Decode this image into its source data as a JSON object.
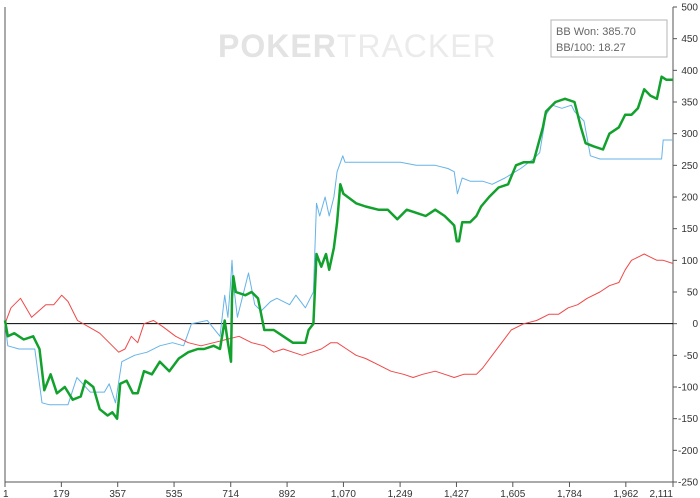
{
  "watermark": {
    "part1": "POKER",
    "part2": "TRACKER"
  },
  "stats": {
    "bb_won": "BB Won: 385.70",
    "bb_per_100": "BB/100: 18.27"
  },
  "chart_data": {
    "type": "line",
    "xlabel": "",
    "ylabel": "",
    "xlim": [
      1,
      2111
    ],
    "ylim": [
      -250,
      500
    ],
    "x_ticks": [
      1,
      179,
      357,
      535,
      714,
      892,
      1070,
      1249,
      1427,
      1605,
      1784,
      1962,
      2111
    ],
    "x_tick_labels": [
      "1",
      "179",
      "357",
      "535",
      "714",
      "892",
      "1,070",
      "1,249",
      "1,427",
      "1,605",
      "1,784",
      "1,962",
      "2,111"
    ],
    "y_ticks": [
      -250,
      -200,
      -150,
      -100,
      -50,
      0,
      50,
      100,
      150,
      200,
      250,
      300,
      350,
      400,
      450,
      500
    ],
    "grid": false,
    "zero_line": true,
    "series": [
      {
        "color": "#66b3e8",
        "width": 1,
        "points": [
          [
            1,
            0
          ],
          [
            10,
            -35
          ],
          [
            45,
            -40
          ],
          [
            95,
            -40
          ],
          [
            118,
            -125
          ],
          [
            140,
            -128
          ],
          [
            200,
            -128
          ],
          [
            228,
            -85
          ],
          [
            270,
            -108
          ],
          [
            315,
            -108
          ],
          [
            330,
            -95
          ],
          [
            350,
            -125
          ],
          [
            370,
            -60
          ],
          [
            410,
            -50
          ],
          [
            450,
            -45
          ],
          [
            490,
            -35
          ],
          [
            530,
            -30
          ],
          [
            565,
            -35
          ],
          [
            590,
            0
          ],
          [
            640,
            5
          ],
          [
            680,
            -20
          ],
          [
            695,
            45
          ],
          [
            705,
            10
          ],
          [
            713,
            60
          ],
          [
            718,
            100
          ],
          [
            722,
            65
          ],
          [
            735,
            10
          ],
          [
            770,
            80
          ],
          [
            790,
            30
          ],
          [
            810,
            20
          ],
          [
            840,
            35
          ],
          [
            860,
            40
          ],
          [
            900,
            30
          ],
          [
            920,
            45
          ],
          [
            950,
            25
          ],
          [
            975,
            50
          ],
          [
            985,
            190
          ],
          [
            995,
            170
          ],
          [
            1012,
            200
          ],
          [
            1025,
            170
          ],
          [
            1040,
            200
          ],
          [
            1050,
            240
          ],
          [
            1068,
            265
          ],
          [
            1075,
            255
          ],
          [
            1120,
            255
          ],
          [
            1180,
            255
          ],
          [
            1250,
            255
          ],
          [
            1300,
            250
          ],
          [
            1360,
            250
          ],
          [
            1400,
            245
          ],
          [
            1420,
            240
          ],
          [
            1430,
            205
          ],
          [
            1445,
            230
          ],
          [
            1470,
            225
          ],
          [
            1510,
            225
          ],
          [
            1540,
            220
          ],
          [
            1580,
            230
          ],
          [
            1630,
            245
          ],
          [
            1670,
            260
          ],
          [
            1690,
            270
          ],
          [
            1710,
            330
          ],
          [
            1730,
            345
          ],
          [
            1760,
            340
          ],
          [
            1790,
            345
          ],
          [
            1800,
            335
          ],
          [
            1830,
            320
          ],
          [
            1850,
            265
          ],
          [
            1880,
            260
          ],
          [
            1950,
            260
          ],
          [
            2020,
            260
          ],
          [
            2075,
            260
          ],
          [
            2080,
            290
          ],
          [
            2111,
            290
          ]
        ]
      },
      {
        "color": "#f04848",
        "width": 1,
        "points": [
          [
            1,
            0
          ],
          [
            20,
            25
          ],
          [
            50,
            40
          ],
          [
            85,
            10
          ],
          [
            130,
            30
          ],
          [
            155,
            30
          ],
          [
            180,
            45
          ],
          [
            200,
            35
          ],
          [
            230,
            5
          ],
          [
            265,
            -5
          ],
          [
            300,
            -15
          ],
          [
            330,
            -30
          ],
          [
            360,
            -45
          ],
          [
            380,
            -40
          ],
          [
            400,
            -20
          ],
          [
            420,
            -30
          ],
          [
            440,
            0
          ],
          [
            470,
            5
          ],
          [
            500,
            -5
          ],
          [
            540,
            -20
          ],
          [
            580,
            -30
          ],
          [
            620,
            -35
          ],
          [
            660,
            -30
          ],
          [
            700,
            -25
          ],
          [
            740,
            -20
          ],
          [
            780,
            -30
          ],
          [
            820,
            -35
          ],
          [
            850,
            -45
          ],
          [
            880,
            -40
          ],
          [
            910,
            -45
          ],
          [
            940,
            -50
          ],
          [
            970,
            -45
          ],
          [
            1000,
            -40
          ],
          [
            1030,
            -30
          ],
          [
            1050,
            -30
          ],
          [
            1080,
            -40
          ],
          [
            1110,
            -50
          ],
          [
            1140,
            -55
          ],
          [
            1180,
            -65
          ],
          [
            1220,
            -75
          ],
          [
            1260,
            -80
          ],
          [
            1290,
            -85
          ],
          [
            1320,
            -80
          ],
          [
            1360,
            -75
          ],
          [
            1390,
            -80
          ],
          [
            1420,
            -85
          ],
          [
            1450,
            -80
          ],
          [
            1490,
            -80
          ],
          [
            1510,
            -70
          ],
          [
            1540,
            -50
          ],
          [
            1570,
            -30
          ],
          [
            1600,
            -10
          ],
          [
            1640,
            0
          ],
          [
            1680,
            5
          ],
          [
            1720,
            15
          ],
          [
            1750,
            15
          ],
          [
            1780,
            25
          ],
          [
            1810,
            30
          ],
          [
            1840,
            40
          ],
          [
            1880,
            50
          ],
          [
            1910,
            60
          ],
          [
            1940,
            65
          ],
          [
            1960,
            85
          ],
          [
            1980,
            100
          ],
          [
            2000,
            105
          ],
          [
            2020,
            110
          ],
          [
            2040,
            105
          ],
          [
            2060,
            100
          ],
          [
            2080,
            100
          ],
          [
            2111,
            95
          ]
        ]
      },
      {
        "color": "#12a12d",
        "width": 2.5,
        "points": [
          [
            1,
            5
          ],
          [
            10,
            -20
          ],
          [
            30,
            -15
          ],
          [
            60,
            -25
          ],
          [
            90,
            -20
          ],
          [
            110,
            -40
          ],
          [
            125,
            -105
          ],
          [
            145,
            -80
          ],
          [
            165,
            -110
          ],
          [
            190,
            -100
          ],
          [
            215,
            -120
          ],
          [
            240,
            -115
          ],
          [
            255,
            -90
          ],
          [
            280,
            -100
          ],
          [
            300,
            -135
          ],
          [
            325,
            -145
          ],
          [
            340,
            -140
          ],
          [
            355,
            -150
          ],
          [
            365,
            -95
          ],
          [
            385,
            -90
          ],
          [
            405,
            -110
          ],
          [
            420,
            -110
          ],
          [
            440,
            -75
          ],
          [
            465,
            -80
          ],
          [
            490,
            -60
          ],
          [
            520,
            -75
          ],
          [
            550,
            -55
          ],
          [
            580,
            -45
          ],
          [
            610,
            -40
          ],
          [
            630,
            -40
          ],
          [
            660,
            -35
          ],
          [
            680,
            -40
          ],
          [
            695,
            5
          ],
          [
            705,
            -30
          ],
          [
            715,
            -60
          ],
          [
            718,
            40
          ],
          [
            722,
            75
          ],
          [
            730,
            50
          ],
          [
            760,
            45
          ],
          [
            780,
            50
          ],
          [
            800,
            40
          ],
          [
            820,
            -10
          ],
          [
            850,
            -10
          ],
          [
            880,
            -20
          ],
          [
            910,
            -30
          ],
          [
            950,
            -30
          ],
          [
            960,
            -10
          ],
          [
            975,
            0
          ],
          [
            985,
            110
          ],
          [
            1000,
            90
          ],
          [
            1015,
            110
          ],
          [
            1025,
            85
          ],
          [
            1040,
            120
          ],
          [
            1050,
            160
          ],
          [
            1060,
            220
          ],
          [
            1070,
            205
          ],
          [
            1110,
            190
          ],
          [
            1140,
            185
          ],
          [
            1180,
            180
          ],
          [
            1210,
            180
          ],
          [
            1240,
            165
          ],
          [
            1270,
            180
          ],
          [
            1300,
            175
          ],
          [
            1330,
            170
          ],
          [
            1360,
            180
          ],
          [
            1390,
            170
          ],
          [
            1410,
            160
          ],
          [
            1420,
            155
          ],
          [
            1428,
            130
          ],
          [
            1435,
            130
          ],
          [
            1445,
            160
          ],
          [
            1470,
            160
          ],
          [
            1490,
            170
          ],
          [
            1505,
            185
          ],
          [
            1530,
            200
          ],
          [
            1560,
            215
          ],
          [
            1590,
            220
          ],
          [
            1615,
            250
          ],
          [
            1640,
            255
          ],
          [
            1670,
            255
          ],
          [
            1700,
            310
          ],
          [
            1710,
            335
          ],
          [
            1740,
            350
          ],
          [
            1770,
            355
          ],
          [
            1800,
            350
          ],
          [
            1820,
            310
          ],
          [
            1835,
            285
          ],
          [
            1860,
            280
          ],
          [
            1890,
            275
          ],
          [
            1910,
            300
          ],
          [
            1940,
            310
          ],
          [
            1960,
            330
          ],
          [
            1980,
            330
          ],
          [
            2000,
            340
          ],
          [
            2020,
            370
          ],
          [
            2040,
            360
          ],
          [
            2060,
            355
          ],
          [
            2075,
            390
          ],
          [
            2090,
            385
          ],
          [
            2111,
            385
          ]
        ]
      }
    ]
  }
}
